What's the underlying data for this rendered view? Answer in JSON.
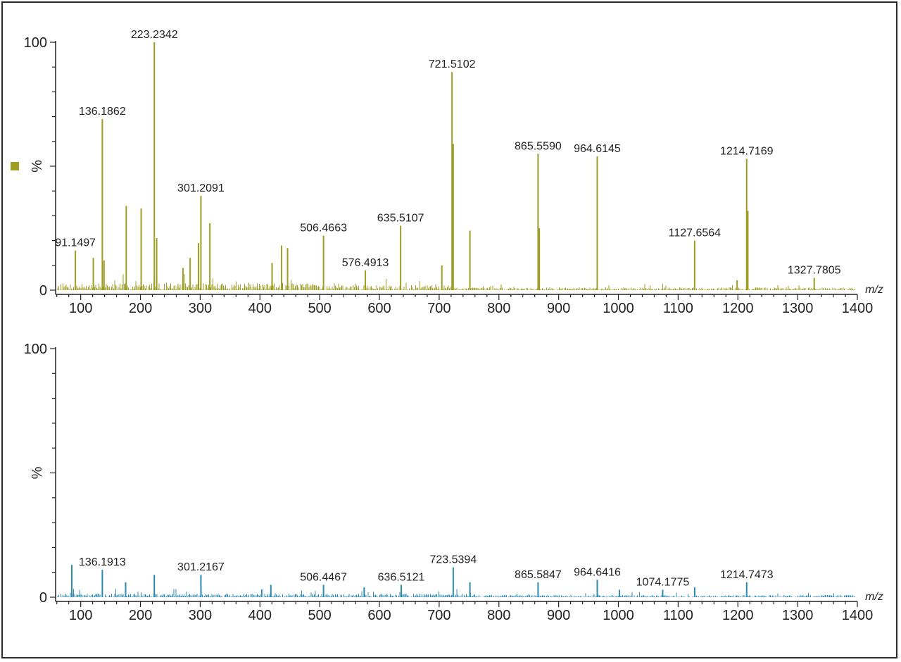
{
  "chart_data": [
    {
      "type": "line",
      "panel": "top",
      "title": "",
      "xlabel": "m/z",
      "ylabel": "%",
      "xlim": [
        58,
        1400
      ],
      "ylim": [
        0,
        100
      ],
      "x_ticks": [
        100,
        200,
        300,
        400,
        500,
        600,
        700,
        800,
        900,
        1000,
        1100,
        1200,
        1300,
        1400
      ],
      "y_ticks": [
        0,
        100
      ],
      "legend": "left of y-axis, olive square marker",
      "grid": false,
      "color": "#9e9d24",
      "peaks": [
        {
          "mz": 91.1497,
          "intensity": 16,
          "label": "91.1497"
        },
        {
          "mz": 121.1,
          "intensity": 13
        },
        {
          "mz": 136.1862,
          "intensity": 69,
          "label": "136.1862"
        },
        {
          "mz": 139.1,
          "intensity": 12
        },
        {
          "mz": 176.2,
          "intensity": 34
        },
        {
          "mz": 201.2,
          "intensity": 33
        },
        {
          "mz": 223.2342,
          "intensity": 100,
          "label": "223.2342"
        },
        {
          "mz": 227.2,
          "intensity": 21
        },
        {
          "mz": 271.2,
          "intensity": 9
        },
        {
          "mz": 283.2,
          "intensity": 13
        },
        {
          "mz": 297.2,
          "intensity": 19
        },
        {
          "mz": 301.2091,
          "intensity": 38,
          "label": "301.2091"
        },
        {
          "mz": 316.2,
          "intensity": 27
        },
        {
          "mz": 420.3,
          "intensity": 11
        },
        {
          "mz": 436.3,
          "intensity": 18
        },
        {
          "mz": 446.3,
          "intensity": 17
        },
        {
          "mz": 506.4663,
          "intensity": 22,
          "label": "506.4663"
        },
        {
          "mz": 576.4913,
          "intensity": 8,
          "label": "576.4913"
        },
        {
          "mz": 635.5107,
          "intensity": 26,
          "label": "635.5107"
        },
        {
          "mz": 704.5,
          "intensity": 10
        },
        {
          "mz": 721.5102,
          "intensity": 88,
          "label": "721.5102"
        },
        {
          "mz": 723.5,
          "intensity": 59
        },
        {
          "mz": 751.5,
          "intensity": 24
        },
        {
          "mz": 865.559,
          "intensity": 55,
          "label": "865.5590"
        },
        {
          "mz": 867.6,
          "intensity": 25
        },
        {
          "mz": 964.6145,
          "intensity": 54,
          "label": "964.6145"
        },
        {
          "mz": 1127.6564,
          "intensity": 20,
          "label": "1127.6564"
        },
        {
          "mz": 1198.7,
          "intensity": 4
        },
        {
          "mz": 1214.7169,
          "intensity": 53,
          "label": "1214.7169"
        },
        {
          "mz": 1216.7,
          "intensity": 32
        },
        {
          "mz": 1327.7805,
          "intensity": 5,
          "label": "1327.7805"
        }
      ]
    },
    {
      "type": "line",
      "panel": "bottom",
      "title": "",
      "xlabel": "m/z",
      "ylabel": "%",
      "xlim": [
        58,
        1400
      ],
      "ylim": [
        0,
        100
      ],
      "x_ticks": [
        100,
        200,
        300,
        400,
        500,
        600,
        700,
        800,
        900,
        1000,
        1100,
        1200,
        1300,
        1400
      ],
      "y_ticks": [
        0,
        100
      ],
      "grid": false,
      "color": "#2e8bb0",
      "peaks": [
        {
          "mz": 85.1,
          "intensity": 13
        },
        {
          "mz": 136.1913,
          "intensity": 11,
          "label": "136.1913"
        },
        {
          "mz": 175.2,
          "intensity": 6
        },
        {
          "mz": 223.2,
          "intensity": 9
        },
        {
          "mz": 301.2167,
          "intensity": 9,
          "label": "301.2167"
        },
        {
          "mz": 418.3,
          "intensity": 5
        },
        {
          "mz": 506.4467,
          "intensity": 5,
          "label": "506.4467"
        },
        {
          "mz": 574.5,
          "intensity": 4
        },
        {
          "mz": 636.5121,
          "intensity": 5,
          "label": "636.5121"
        },
        {
          "mz": 723.5394,
          "intensity": 12,
          "label": "723.5394"
        },
        {
          "mz": 751.5,
          "intensity": 6
        },
        {
          "mz": 865.5847,
          "intensity": 6,
          "label": "865.5847"
        },
        {
          "mz": 964.6416,
          "intensity": 7,
          "label": "964.6416"
        },
        {
          "mz": 1001.7,
          "intensity": 3
        },
        {
          "mz": 1074.1775,
          "intensity": 3,
          "label": "1074.1775"
        },
        {
          "mz": 1127.7,
          "intensity": 4
        },
        {
          "mz": 1214.7473,
          "intensity": 6,
          "label": "1214.7473"
        }
      ]
    }
  ]
}
